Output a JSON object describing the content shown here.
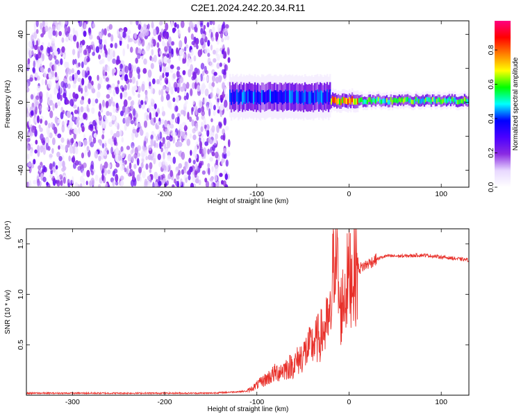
{
  "title": "C2E1.2024.242.20.34.R11",
  "chart_data": [
    {
      "type": "heatmap",
      "xlabel": "Height of straight line (km)",
      "ylabel": "Frequency (Hz)",
      "xlim": [
        -350,
        130
      ],
      "ylim": [
        -50,
        48
      ],
      "x_ticks": [
        -300,
        -200,
        -100,
        0,
        100
      ],
      "y_ticks": [
        -40,
        -20,
        0,
        20,
        40
      ],
      "colorbar": {
        "label": "Normalized spectral amplitude",
        "range": [
          0.0,
          0.97
        ],
        "ticks": [
          0.0,
          0.2,
          0.4,
          0.6,
          0.8
        ],
        "colormap": [
          "#ffffff",
          "#e8d8ff",
          "#8a2be2",
          "#4b00ff",
          "#0000ff",
          "#00ffff",
          "#00ff00",
          "#ffff00",
          "#ff8000",
          "#ff0000",
          "#ff0080"
        ]
      },
      "regions": [
        {
          "x_range": [
            -350,
            -130
          ],
          "freq_range": [
            -50,
            48
          ],
          "amplitude": 0.05,
          "note": "broadband noise"
        },
        {
          "x_range": [
            -130,
            -20
          ],
          "center_freq": 3,
          "halfwidth_hz": 8,
          "amplitude": 0.45
        },
        {
          "x_range": [
            -20,
            10
          ],
          "center_freq": 1,
          "halfwidth_hz": 4,
          "amplitude": 0.85
        },
        {
          "x_range": [
            10,
            130
          ],
          "center_freq": 1,
          "halfwidth_hz": 3,
          "amplitude": 0.65
        }
      ]
    },
    {
      "type": "line",
      "xlabel": "Height of straight line (km)",
      "ylabel": "SNR (10 * v/v)",
      "y_multiplier": "(x10⁴)",
      "xlim": [
        -350,
        130
      ],
      "ylim": [
        0,
        1.65
      ],
      "x_ticks": [
        -300,
        -200,
        -100,
        0,
        100
      ],
      "y_ticks": [
        0.5,
        1.0,
        1.5
      ],
      "series": [
        {
          "color": "#e8302a",
          "x": [
            -350,
            -300,
            -250,
            -200,
            -150,
            -110,
            -100,
            -90,
            -80,
            -70,
            -60,
            -50,
            -40,
            -30,
            -20,
            -15,
            -10,
            0,
            10,
            20,
            30,
            40,
            60,
            80,
            100,
            130
          ],
          "y": [
            0.02,
            0.02,
            0.02,
            0.02,
            0.02,
            0.04,
            0.1,
            0.16,
            0.22,
            0.26,
            0.3,
            0.4,
            0.5,
            0.6,
            0.75,
            1.65,
            0.8,
            1.2,
            1.25,
            1.3,
            1.35,
            1.38,
            1.38,
            1.39,
            1.37,
            1.34
          ]
        }
      ]
    }
  ]
}
